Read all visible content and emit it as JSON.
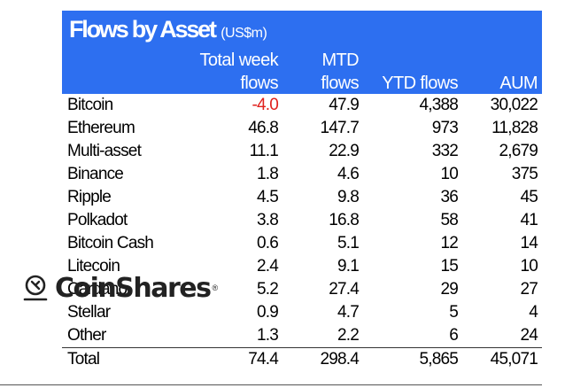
{
  "title": {
    "main": "Flows by Asset",
    "unit": "(US$m)"
  },
  "columns": {
    "week_line1": "Total week",
    "week_line2": "flows",
    "mtd_line1": "MTD",
    "mtd_line2": "flows",
    "ytd": "YTD flows",
    "aum": "AUM"
  },
  "rows": [
    {
      "asset": "Bitcoin",
      "week": "-4.0",
      "mtd": "47.9",
      "ytd": "4,388",
      "aum": "30,022"
    },
    {
      "asset": "Ethereum",
      "week": "46.8",
      "mtd": "147.7",
      "ytd": "973",
      "aum": "11,828"
    },
    {
      "asset": "Multi-asset",
      "week": "11.1",
      "mtd": "22.9",
      "ytd": "332",
      "aum": "2,679"
    },
    {
      "asset": "Binance",
      "week": "1.8",
      "mtd": "4.6",
      "ytd": "10",
      "aum": "375"
    },
    {
      "asset": "Ripple",
      "week": "4.5",
      "mtd": "9.8",
      "ytd": "36",
      "aum": "45"
    },
    {
      "asset": "Polkadot",
      "week": "3.8",
      "mtd": "16.8",
      "ytd": "58",
      "aum": "41"
    },
    {
      "asset": "Bitcoin Cash",
      "week": "0.6",
      "mtd": "5.1",
      "ytd": "12",
      "aum": "14"
    },
    {
      "asset": "Litecoin",
      "week": "2.4",
      "mtd": "9.1",
      "ytd": "15",
      "aum": "10"
    },
    {
      "asset": "Cardano",
      "week": "5.2",
      "mtd": "27.4",
      "ytd": "29",
      "aum": "27"
    },
    {
      "asset": "Stellar",
      "week": "0.9",
      "mtd": "4.7",
      "ytd": "5",
      "aum": "4"
    },
    {
      "asset": "Other",
      "week": "1.3",
      "mtd": "2.2",
      "ytd": "6",
      "aum": "24"
    }
  ],
  "total": {
    "asset": "Total",
    "week": "74.4",
    "mtd": "298.4",
    "ytd": "5,865",
    "aum": "45,071"
  },
  "logo": {
    "text": "CoinShares",
    "mark": "®",
    "icon": "coinshares-logo-icon"
  },
  "colors": {
    "header_bg": "#2d6ff0",
    "negative": "#e0201c"
  }
}
